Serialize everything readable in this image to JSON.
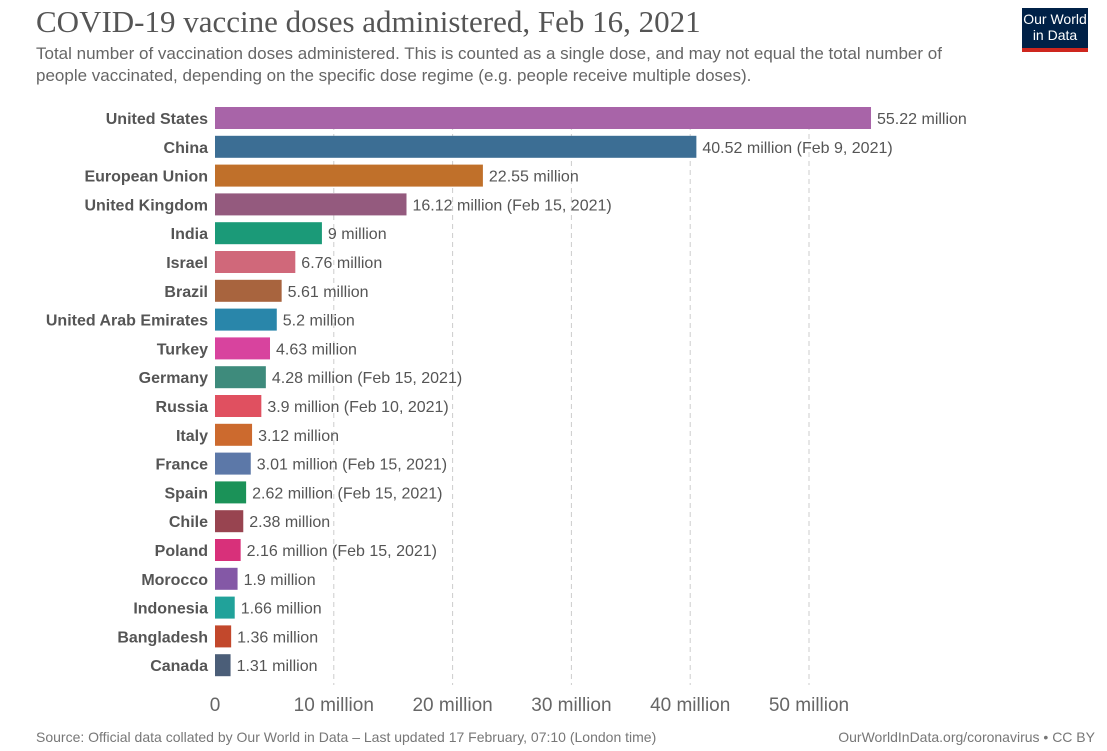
{
  "header": {
    "title": "COVID-19 vaccine doses administered, Feb 16, 2021",
    "subtitle": "Total number of vaccination doses administered. This is counted as a single dose, and may not equal the total number of people vaccinated, depending on the specific dose regime (e.g. people receive multiple doses).",
    "logo": "Our World in Data"
  },
  "footer": {
    "source": "Source: Official data collated by Our World in Data – Last updated 17 February, 07:10 (London time)",
    "link": "OurWorldInData.org/coronavirus • CC BY"
  },
  "chart_data": {
    "type": "bar",
    "orientation": "horizontal",
    "grid": "vertical dashed",
    "xlim": [
      0,
      55.22
    ],
    "x_ticks": [
      "0",
      "10 million",
      "20 million",
      "30 million",
      "40 million",
      "50 million"
    ],
    "x_tick_values": [
      0,
      10,
      20,
      30,
      40,
      50
    ],
    "categories": [
      "United States",
      "China",
      "European Union",
      "United Kingdom",
      "India",
      "Israel",
      "Brazil",
      "United Arab Emirates",
      "Turkey",
      "Germany",
      "Russia",
      "Italy",
      "France",
      "Spain",
      "Chile",
      "Poland",
      "Morocco",
      "Indonesia",
      "Bangladesh",
      "Canada"
    ],
    "values": [
      55.22,
      40.52,
      22.55,
      16.12,
      9,
      6.76,
      5.61,
      5.2,
      4.63,
      4.28,
      3.9,
      3.12,
      3.01,
      2.62,
      2.38,
      2.16,
      1.9,
      1.66,
      1.36,
      1.31
    ],
    "value_labels": [
      "55.22 million",
      "40.52 million (Feb 9, 2021)",
      "22.55 million",
      "16.12 million (Feb 15, 2021)",
      "9 million",
      "6.76 million",
      "5.61 million",
      "5.2 million",
      "4.63 million",
      "4.28 million (Feb 15, 2021)",
      "3.9 million (Feb 10, 2021)",
      "3.12 million",
      "3.01 million (Feb 15, 2021)",
      "2.62 million (Feb 15, 2021)",
      "2.38 million",
      "2.16 million (Feb 15, 2021)",
      "1.9 million",
      "1.66 million",
      "1.36 million",
      "1.31 million"
    ],
    "colors": [
      "#a864a8",
      "#3c6e94",
      "#c0702a",
      "#945a7e",
      "#1b9a78",
      "#d0687a",
      "#a8643e",
      "#2986aa",
      "#d8439e",
      "#3e8b7c",
      "#e05060",
      "#cc6a2e",
      "#5c78a8",
      "#1b9258",
      "#984450",
      "#d8307a",
      "#8458a6",
      "#21a29a",
      "#c2482c",
      "#4b5e78"
    ]
  }
}
